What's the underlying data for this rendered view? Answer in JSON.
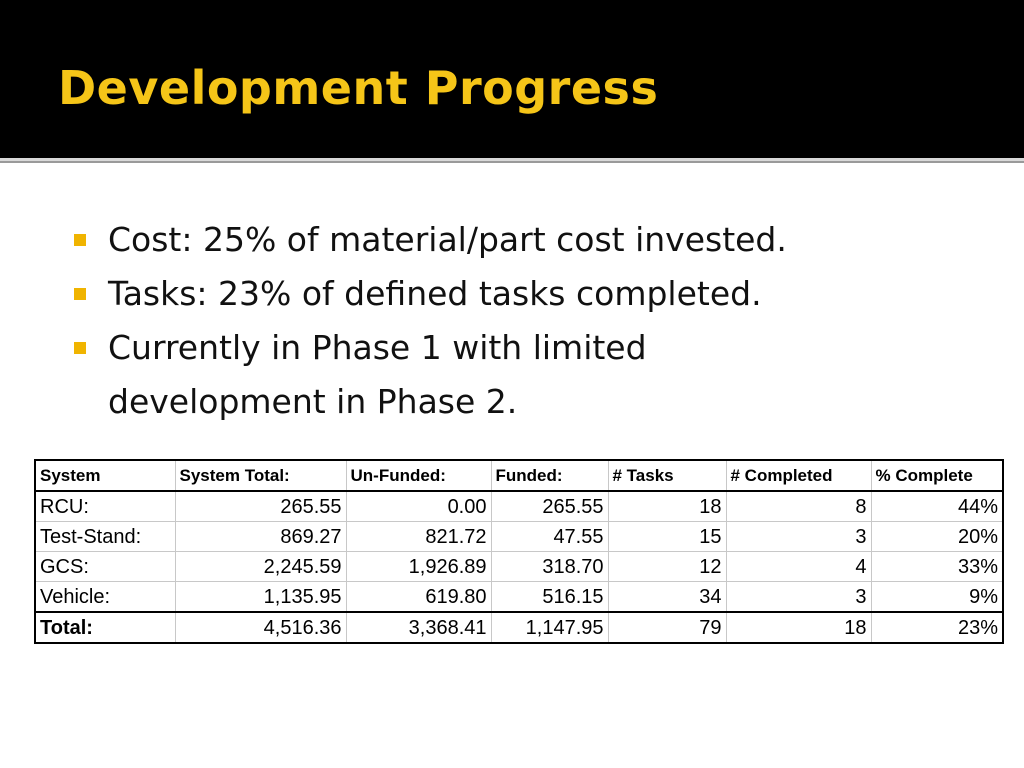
{
  "title": "Development Progress",
  "bullets": [
    "Cost:  25% of material/part cost invested.",
    "Tasks:  23% of defined tasks completed.",
    "Currently in Phase 1 with limited development in Phase 2."
  ],
  "colors": {
    "title": "#f5c518",
    "header_background": "#000000",
    "bullet_marker": "#f0b400"
  },
  "table": {
    "headers": [
      "System",
      "System Total:",
      "Un-Funded:",
      "Funded:",
      "# Tasks",
      "# Completed",
      "% Complete"
    ],
    "rows": [
      [
        "RCU:",
        "265.55",
        "0.00",
        "265.55",
        "18",
        "8",
        "44%"
      ],
      [
        "Test-Stand:",
        "869.27",
        "821.72",
        "47.55",
        "15",
        "3",
        "20%"
      ],
      [
        "GCS:",
        "2,245.59",
        "1,926.89",
        "318.70",
        "12",
        "4",
        "33%"
      ],
      [
        "Vehicle:",
        "1,135.95",
        "619.80",
        "516.15",
        "34",
        "3",
        "9%"
      ]
    ],
    "total": [
      "Total:",
      "4,516.36",
      "3,368.41",
      "1,147.95",
      "79",
      "18",
      "23%"
    ]
  }
}
